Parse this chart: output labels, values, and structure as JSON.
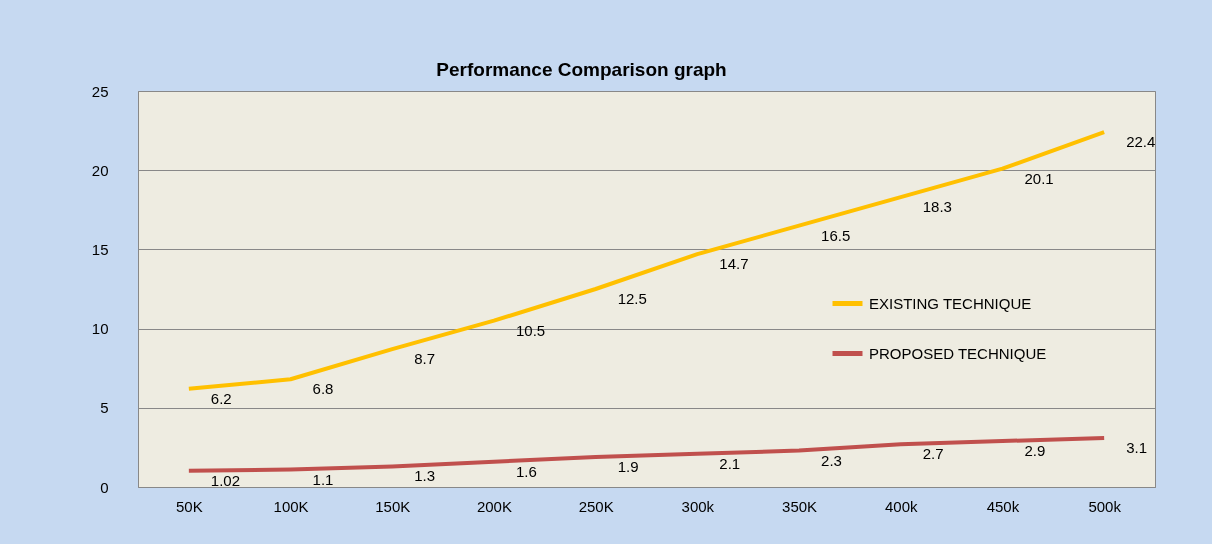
{
  "chart_data": {
    "type": "line",
    "title": "Performance Comparison graph",
    "categories": [
      "50K",
      "100K",
      "150K",
      "200K",
      "250K",
      "300k",
      "350K",
      "400k",
      "450k",
      "500k"
    ],
    "series": [
      {
        "name": "EXISTING TECHNIQUE",
        "color": "#ffc000",
        "values": [
          6.2,
          6.8,
          8.7,
          10.5,
          12.5,
          14.7,
          16.5,
          18.3,
          20.1,
          22.4
        ]
      },
      {
        "name": "PROPOSED TECHNIQUE",
        "color": "#c0504d",
        "values": [
          1.02,
          1.1,
          1.3,
          1.6,
          1.9,
          2.1,
          2.3,
          2.7,
          2.9,
          3.1
        ]
      }
    ],
    "ylim": [
      0,
      25
    ],
    "yticks": [
      0,
      5,
      10,
      15,
      20,
      25
    ],
    "grid": "y",
    "legend": "right",
    "data_labels": true,
    "marker": "none",
    "line_style": "solid"
  }
}
